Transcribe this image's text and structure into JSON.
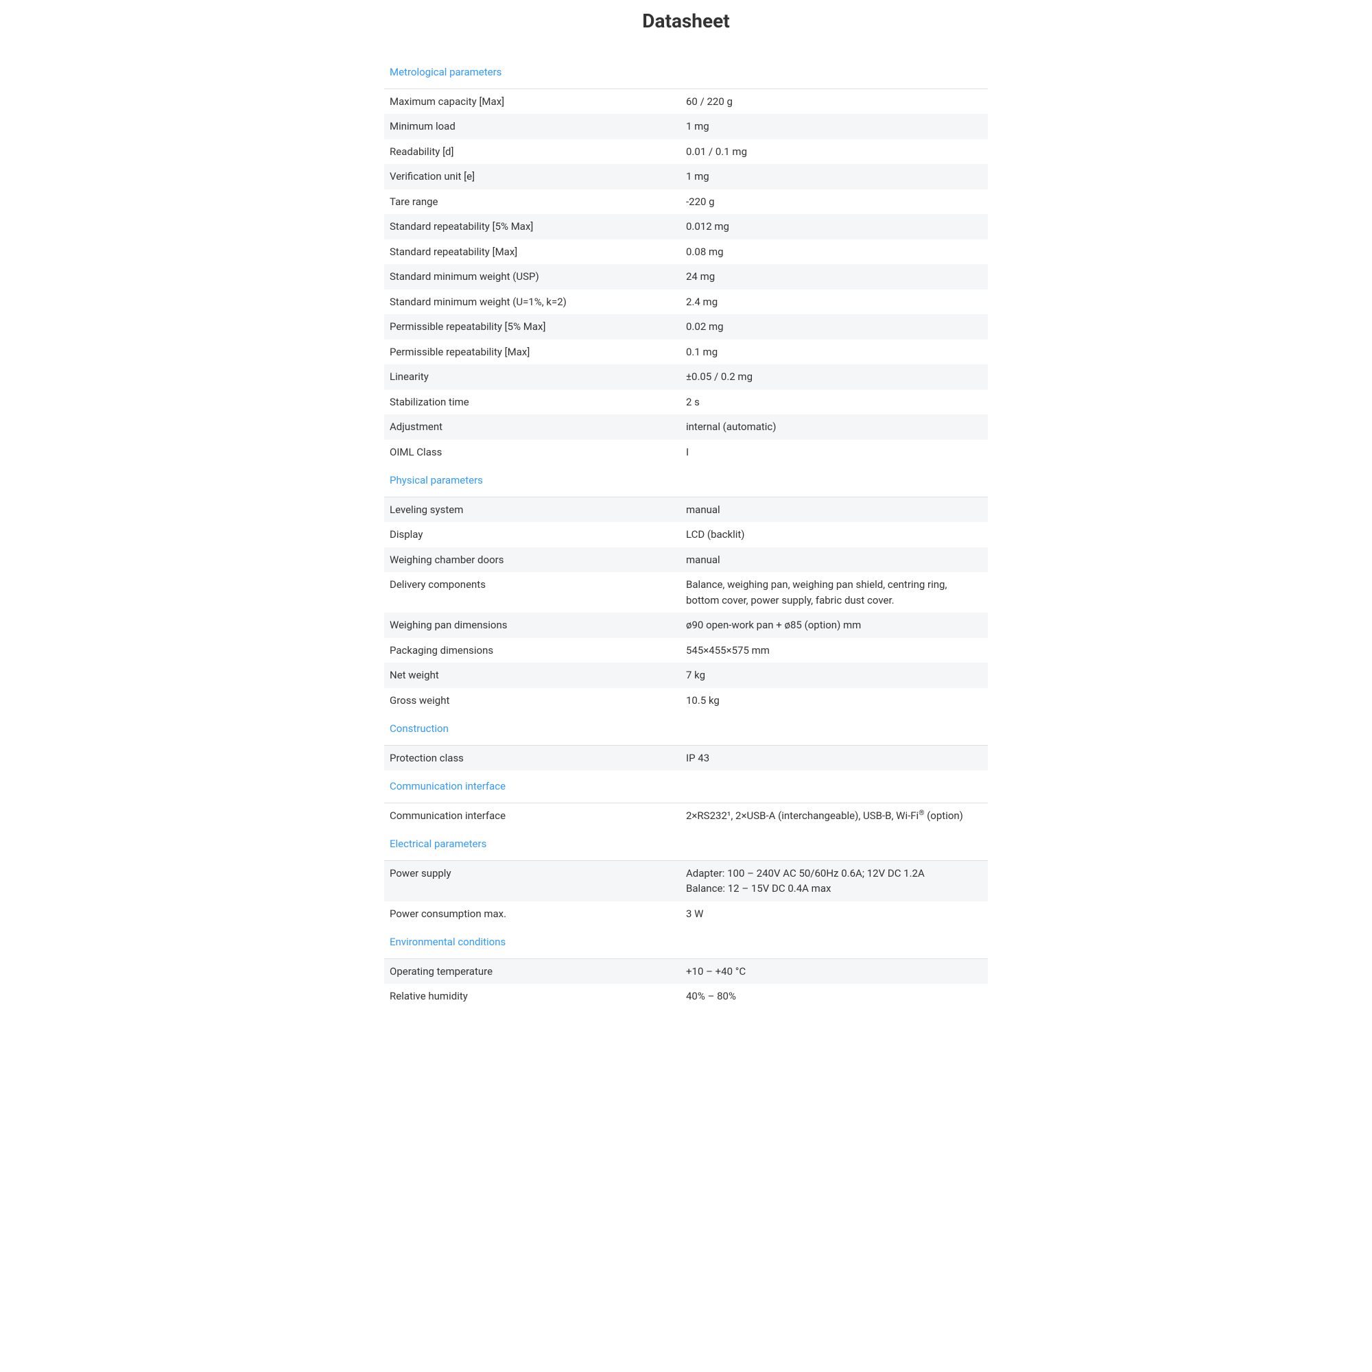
{
  "page": {
    "title": "Datasheet"
  },
  "colors": {
    "section_title": "#3399ff",
    "text": "#333333",
    "row_stripe": "#f5f6f7",
    "divider": "#e0e0e0",
    "background": "#ffffff"
  },
  "typography": {
    "title_size_pt": 28,
    "body_size_pt": 15,
    "section_size_pt": 15
  },
  "sections": [
    {
      "title": "Metrological parameters",
      "rows": [
        {
          "label": "Maximum capacity [Max]",
          "value": "60 / 220 g"
        },
        {
          "label": "Minimum load",
          "value": "1 mg"
        },
        {
          "label": "Readability [d]",
          "value": "0.01 / 0.1 mg"
        },
        {
          "label": "Verification unit [e]",
          "value": "1 mg"
        },
        {
          "label": "Tare range",
          "value": "-220 g"
        },
        {
          "label": "Standard repeatability [5% Max]",
          "value": "0.012 mg"
        },
        {
          "label": "Standard repeatability [Max]",
          "value": "0.08 mg"
        },
        {
          "label": "Standard minimum weight (USP)",
          "value": "24 mg"
        },
        {
          "label": "Standard minimum weight (U=1%, k=2)",
          "value": "2.4 mg"
        },
        {
          "label": "Permissible repeatability [5% Max]",
          "value": "0.02 mg"
        },
        {
          "label": "Permissible repeatability [Max]",
          "value": "0.1 mg"
        },
        {
          "label": "Linearity",
          "value": "±0.05 / 0.2 mg"
        },
        {
          "label": "Stabilization time",
          "value": "2 s"
        },
        {
          "label": "Adjustment",
          "value": "internal (automatic)"
        },
        {
          "label": "OIML Class",
          "value": "I"
        }
      ]
    },
    {
      "title": "Physical parameters",
      "rows": [
        {
          "label": "Leveling system",
          "value": "manual"
        },
        {
          "label": "Display",
          "value": "LCD (backlit)"
        },
        {
          "label": "Weighing chamber doors",
          "value": "manual"
        },
        {
          "label": "Delivery components",
          "value": "Balance, weighing pan, weighing pan shield, centring ring, bottom cover, power supply, fabric dust cover."
        },
        {
          "label": "Weighing pan dimensions",
          "value": "ø90 open-work pan + ø85 (option) mm"
        },
        {
          "label": "Packaging dimensions",
          "value": "545×455×575 mm"
        },
        {
          "label": "Net weight",
          "value": "7 kg"
        },
        {
          "label": "Gross weight",
          "value": "10.5 kg"
        }
      ]
    },
    {
      "title": "Construction",
      "rows": [
        {
          "label": "Protection class",
          "value": "IP 43"
        }
      ]
    },
    {
      "title": "Communication interface",
      "rows": [
        {
          "label": "Communication interface",
          "value_html": "2×RS232¹, 2×USB-A (interchangeable), USB-B, Wi-Fi<sup>®</sup> (option)",
          "value": "2×RS232¹, 2×USB-A (interchangeable), USB-B, Wi-Fi® (option)"
        }
      ]
    },
    {
      "title": "Electrical parameters",
      "rows": [
        {
          "label": "Power supply",
          "value_html": "Adapter: 100 – 240V AC 50/60Hz 0.6A; 12V DC 1.2A<br>Balance: 12 – 15V DC 0.4A max",
          "value": "Adapter: 100 – 240V AC 50/60Hz 0.6A; 12V DC 1.2A\nBalance: 12 – 15V DC 0.4A max"
        },
        {
          "label": "Power consumption max.",
          "value": "3 W"
        }
      ]
    },
    {
      "title": "Environmental conditions",
      "rows": [
        {
          "label": "Operating temperature",
          "value": "+10 – +40 °C"
        },
        {
          "label": "Relative humidity",
          "value": "40% – 80%"
        }
      ]
    }
  ]
}
